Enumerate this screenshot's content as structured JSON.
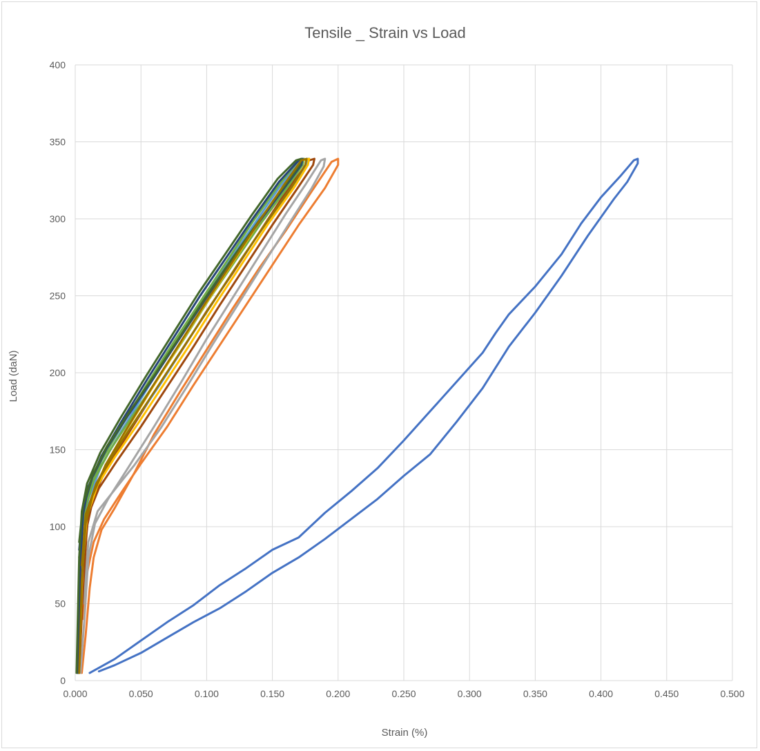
{
  "chart_data": {
    "type": "line",
    "title": "Tensile _ Strain vs Load",
    "xlabel": "Strain (%)",
    "ylabel": "Load (daN)",
    "xlim": [
      0,
      0.5
    ],
    "ylim": [
      0,
      400
    ],
    "x_ticks": [
      "0.000",
      "0.050",
      "0.100",
      "0.150",
      "0.200",
      "0.250",
      "0.300",
      "0.350",
      "0.400",
      "0.450",
      "0.500"
    ],
    "y_ticks": [
      "0",
      "50",
      "100",
      "150",
      "200",
      "250",
      "300",
      "350",
      "400"
    ],
    "grid": true,
    "legend": "none",
    "series": [
      {
        "color": "#4472C4",
        "points": [
          [
            0.011,
            5
          ],
          [
            0.03,
            14
          ],
          [
            0.05,
            26
          ],
          [
            0.07,
            38
          ],
          [
            0.09,
            49
          ],
          [
            0.11,
            62
          ],
          [
            0.13,
            73
          ],
          [
            0.15,
            85
          ],
          [
            0.17,
            93
          ],
          [
            0.19,
            109
          ],
          [
            0.21,
            123
          ],
          [
            0.23,
            138
          ],
          [
            0.25,
            156
          ],
          [
            0.27,
            175
          ],
          [
            0.29,
            194
          ],
          [
            0.31,
            213
          ],
          [
            0.32,
            226
          ],
          [
            0.33,
            238
          ],
          [
            0.35,
            256
          ],
          [
            0.37,
            277
          ],
          [
            0.385,
            297
          ],
          [
            0.4,
            314
          ],
          [
            0.415,
            328
          ],
          [
            0.425,
            338
          ],
          [
            0.428,
            339
          ],
          [
            0.428,
            336
          ],
          [
            0.42,
            324
          ],
          [
            0.41,
            313
          ],
          [
            0.39,
            289
          ],
          [
            0.37,
            263
          ],
          [
            0.35,
            239
          ],
          [
            0.33,
            217
          ],
          [
            0.31,
            190
          ],
          [
            0.29,
            168
          ],
          [
            0.27,
            147
          ],
          [
            0.25,
            133
          ],
          [
            0.23,
            118
          ],
          [
            0.21,
            105
          ],
          [
            0.19,
            92
          ],
          [
            0.17,
            80
          ],
          [
            0.15,
            70
          ],
          [
            0.13,
            58
          ],
          [
            0.11,
            47
          ],
          [
            0.09,
            38
          ],
          [
            0.07,
            28
          ],
          [
            0.05,
            18
          ],
          [
            0.03,
            10
          ],
          [
            0.018,
            6
          ]
        ]
      },
      {
        "color": "#ED7D31",
        "points": [
          [
            0.005,
            5
          ],
          [
            0.008,
            30
          ],
          [
            0.011,
            60
          ],
          [
            0.014,
            80
          ],
          [
            0.02,
            98
          ],
          [
            0.03,
            112
          ],
          [
            0.045,
            135
          ],
          [
            0.06,
            160
          ],
          [
            0.08,
            188
          ],
          [
            0.1,
            215
          ],
          [
            0.12,
            242
          ],
          [
            0.14,
            268
          ],
          [
            0.16,
            292
          ],
          [
            0.18,
            318
          ],
          [
            0.195,
            337
          ],
          [
            0.2,
            339
          ],
          [
            0.2,
            335
          ],
          [
            0.19,
            320
          ],
          [
            0.17,
            296
          ],
          [
            0.15,
            270
          ],
          [
            0.13,
            244
          ],
          [
            0.11,
            218
          ],
          [
            0.09,
            192
          ],
          [
            0.07,
            165
          ],
          [
            0.05,
            141
          ],
          [
            0.035,
            122
          ],
          [
            0.022,
            105
          ],
          [
            0.014,
            90
          ],
          [
            0.009,
            70
          ],
          [
            0.006,
            40
          ]
        ]
      },
      {
        "color": "#A5A5A5",
        "points": [
          [
            0.004,
            5
          ],
          [
            0.007,
            40
          ],
          [
            0.01,
            80
          ],
          [
            0.015,
            102
          ],
          [
            0.025,
            118
          ],
          [
            0.04,
            138
          ],
          [
            0.06,
            165
          ],
          [
            0.08,
            193
          ],
          [
            0.1,
            222
          ],
          [
            0.12,
            249
          ],
          [
            0.14,
            276
          ],
          [
            0.16,
            303
          ],
          [
            0.175,
            322
          ],
          [
            0.187,
            338
          ],
          [
            0.19,
            339
          ],
          [
            0.189,
            334
          ],
          [
            0.18,
            320
          ],
          [
            0.165,
            300
          ],
          [
            0.145,
            273
          ],
          [
            0.125,
            246
          ],
          [
            0.105,
            219
          ],
          [
            0.085,
            191
          ],
          [
            0.065,
            164
          ],
          [
            0.045,
            140
          ],
          [
            0.03,
            124
          ],
          [
            0.017,
            110
          ],
          [
            0.01,
            90
          ],
          [
            0.006,
            50
          ]
        ]
      },
      {
        "color": "#9E480E",
        "points": [
          [
            0.003,
            5
          ],
          [
            0.006,
            60
          ],
          [
            0.009,
            100
          ],
          [
            0.014,
            120
          ],
          [
            0.025,
            140
          ],
          [
            0.04,
            160
          ],
          [
            0.06,
            187
          ],
          [
            0.08,
            213
          ],
          [
            0.1,
            240
          ],
          [
            0.12,
            265
          ],
          [
            0.14,
            291
          ],
          [
            0.16,
            317
          ],
          [
            0.178,
            338
          ],
          [
            0.182,
            339
          ],
          [
            0.181,
            335
          ],
          [
            0.17,
            321
          ],
          [
            0.15,
            296
          ],
          [
            0.13,
            270
          ],
          [
            0.11,
            244
          ],
          [
            0.09,
            217
          ],
          [
            0.07,
            191
          ],
          [
            0.05,
            165
          ],
          [
            0.032,
            143
          ],
          [
            0.018,
            125
          ],
          [
            0.01,
            108
          ],
          [
            0.006,
            70
          ]
        ]
      },
      {
        "color": "#5B9BD5",
        "points": [
          [
            0.002,
            5
          ],
          [
            0.004,
            60
          ],
          [
            0.006,
            100
          ],
          [
            0.01,
            118
          ],
          [
            0.02,
            140
          ],
          [
            0.035,
            162
          ],
          [
            0.055,
            190
          ],
          [
            0.075,
            217
          ],
          [
            0.095,
            244
          ],
          [
            0.115,
            270
          ],
          [
            0.135,
            295
          ],
          [
            0.155,
            320
          ],
          [
            0.172,
            338
          ],
          [
            0.177,
            339
          ],
          [
            0.176,
            335
          ],
          [
            0.165,
            321
          ],
          [
            0.145,
            297
          ],
          [
            0.125,
            272
          ],
          [
            0.105,
            246
          ],
          [
            0.085,
            220
          ],
          [
            0.065,
            193
          ],
          [
            0.045,
            168
          ],
          [
            0.028,
            147
          ],
          [
            0.016,
            128
          ],
          [
            0.008,
            108
          ],
          [
            0.004,
            70
          ]
        ]
      },
      {
        "color": "#70AD47",
        "points": [
          [
            0.002,
            5
          ],
          [
            0.004,
            70
          ],
          [
            0.006,
            105
          ],
          [
            0.01,
            122
          ],
          [
            0.02,
            143
          ],
          [
            0.035,
            165
          ],
          [
            0.055,
            193
          ],
          [
            0.075,
            220
          ],
          [
            0.095,
            246
          ],
          [
            0.115,
            272
          ],
          [
            0.135,
            298
          ],
          [
            0.155,
            322
          ],
          [
            0.17,
            338
          ],
          [
            0.174,
            339
          ],
          [
            0.173,
            335
          ],
          [
            0.162,
            321
          ],
          [
            0.142,
            298
          ],
          [
            0.122,
            273
          ],
          [
            0.102,
            248
          ],
          [
            0.082,
            221
          ],
          [
            0.062,
            195
          ],
          [
            0.042,
            170
          ],
          [
            0.026,
            149
          ],
          [
            0.014,
            130
          ],
          [
            0.007,
            110
          ],
          [
            0.003,
            80
          ]
        ]
      },
      {
        "color": "#FFC000",
        "points": [
          [
            0.003,
            5
          ],
          [
            0.005,
            60
          ],
          [
            0.007,
            100
          ],
          [
            0.012,
            118
          ],
          [
            0.022,
            138
          ],
          [
            0.037,
            160
          ],
          [
            0.057,
            188
          ],
          [
            0.077,
            215
          ],
          [
            0.097,
            242
          ],
          [
            0.117,
            268
          ],
          [
            0.137,
            294
          ],
          [
            0.157,
            319
          ],
          [
            0.173,
            338
          ],
          [
            0.178,
            339
          ],
          [
            0.177,
            335
          ],
          [
            0.167,
            321
          ],
          [
            0.147,
            297
          ],
          [
            0.127,
            271
          ],
          [
            0.107,
            245
          ],
          [
            0.087,
            218
          ],
          [
            0.067,
            192
          ],
          [
            0.047,
            166
          ],
          [
            0.03,
            145
          ],
          [
            0.017,
            127
          ],
          [
            0.009,
            107
          ],
          [
            0.005,
            70
          ]
        ]
      },
      {
        "color": "#264478",
        "points": [
          [
            0.002,
            5
          ],
          [
            0.004,
            75
          ],
          [
            0.006,
            108
          ],
          [
            0.01,
            126
          ],
          [
            0.02,
            146
          ],
          [
            0.035,
            168
          ],
          [
            0.055,
            196
          ],
          [
            0.075,
            223
          ],
          [
            0.095,
            250
          ],
          [
            0.115,
            275
          ],
          [
            0.135,
            300
          ],
          [
            0.155,
            324
          ],
          [
            0.17,
            338
          ],
          [
            0.173,
            339
          ],
          [
            0.172,
            335
          ],
          [
            0.16,
            321
          ],
          [
            0.14,
            298
          ],
          [
            0.12,
            274
          ],
          [
            0.1,
            249
          ],
          [
            0.08,
            223
          ],
          [
            0.06,
            197
          ],
          [
            0.04,
            172
          ],
          [
            0.024,
            151
          ],
          [
            0.013,
            132
          ],
          [
            0.006,
            112
          ],
          [
            0.003,
            85
          ]
        ]
      },
      {
        "color": "#43682B",
        "points": [
          [
            0.001,
            5
          ],
          [
            0.003,
            80
          ],
          [
            0.005,
            110
          ],
          [
            0.009,
            128
          ],
          [
            0.019,
            148
          ],
          [
            0.034,
            170
          ],
          [
            0.054,
            198
          ],
          [
            0.074,
            225
          ],
          [
            0.094,
            252
          ],
          [
            0.114,
            277
          ],
          [
            0.134,
            302
          ],
          [
            0.154,
            326
          ],
          [
            0.168,
            338
          ],
          [
            0.172,
            339
          ],
          [
            0.171,
            335
          ],
          [
            0.16,
            322
          ],
          [
            0.14,
            299
          ],
          [
            0.12,
            275
          ],
          [
            0.1,
            250
          ],
          [
            0.08,
            224
          ],
          [
            0.06,
            198
          ],
          [
            0.04,
            173
          ],
          [
            0.024,
            152
          ],
          [
            0.013,
            133
          ],
          [
            0.006,
            114
          ],
          [
            0.003,
            90
          ]
        ]
      },
      {
        "color": "#997300",
        "points": [
          [
            0.003,
            5
          ],
          [
            0.005,
            65
          ],
          [
            0.008,
            102
          ],
          [
            0.013,
            120
          ],
          [
            0.023,
            140
          ],
          [
            0.038,
            162
          ],
          [
            0.058,
            190
          ],
          [
            0.078,
            217
          ],
          [
            0.098,
            244
          ],
          [
            0.118,
            270
          ],
          [
            0.138,
            296
          ],
          [
            0.158,
            321
          ],
          [
            0.172,
            338
          ],
          [
            0.176,
            339
          ],
          [
            0.175,
            335
          ],
          [
            0.165,
            321
          ],
          [
            0.145,
            297
          ],
          [
            0.125,
            272
          ],
          [
            0.105,
            246
          ],
          [
            0.085,
            220
          ],
          [
            0.065,
            194
          ],
          [
            0.045,
            168
          ],
          [
            0.029,
            147
          ],
          [
            0.016,
            128
          ],
          [
            0.008,
            108
          ],
          [
            0.005,
            75
          ]
        ]
      }
    ]
  }
}
